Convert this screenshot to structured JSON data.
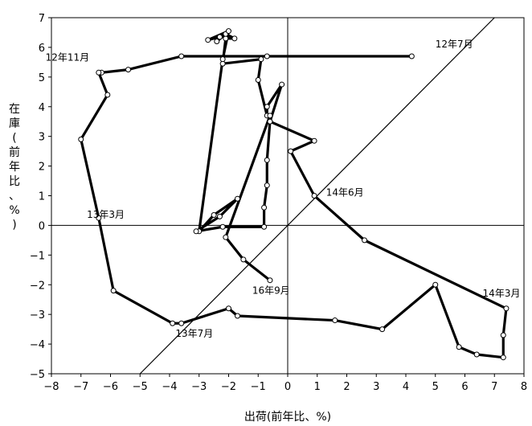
{
  "chart_data": {
    "type": "line",
    "xlabel": "出荷(前年比、%)",
    "ylabel": "在庫(前年比、%)",
    "xlim": [
      -8,
      8
    ],
    "ylim": [
      -5,
      7
    ],
    "xticks": [
      "−8",
      "−7",
      "−6",
      "−5",
      "−4",
      "−3",
      "−2",
      "−1",
      "0",
      "1",
      "2",
      "3",
      "4",
      "5",
      "6",
      "7",
      "8"
    ],
    "yticks": [
      "−5",
      "−4",
      "−3",
      "−2",
      "−1",
      "0",
      "1",
      "2",
      "3",
      "4",
      "5",
      "6",
      "7"
    ],
    "reference_line": "y = x",
    "grid": false,
    "series": [
      {
        "x": [
          4.2,
          -0.7,
          -3.6,
          -5.4,
          -6.3,
          -6.4,
          -6.1,
          -7.0,
          -6.4,
          -5.9,
          -3.9,
          -3.6,
          -2.0,
          -1.7,
          1.6,
          3.2,
          5.0,
          5.8,
          6.4,
          7.3,
          7.3,
          7.4,
          2.6,
          0.9,
          0.1,
          0.9,
          -0.6,
          -0.2,
          -0.7,
          -0.7,
          -1.0,
          -0.9,
          -2.2,
          -2.1,
          -1.8,
          -2.1,
          -2.4,
          -2.3,
          -2.7,
          -2.0,
          -2.2,
          -3.0,
          -2.5,
          -1.7,
          -2.3,
          -3.1,
          -2.2,
          -0.8,
          -0.8,
          -0.7,
          -0.7,
          -0.6,
          -0.6,
          -2.1,
          -1.5,
          -0.6
        ],
        "y": [
          5.7,
          5.7,
          5.7,
          5.25,
          5.15,
          5.15,
          4.4,
          2.9,
          0.25,
          -2.2,
          -3.3,
          -3.3,
          -2.8,
          -3.05,
          -3.2,
          -3.5,
          -2.0,
          -4.1,
          -4.35,
          -4.45,
          -3.7,
          -2.8,
          -0.5,
          1.0,
          2.5,
          2.85,
          3.5,
          4.75,
          4.0,
          3.7,
          4.9,
          5.6,
          5.45,
          6.3,
          6.3,
          6.45,
          6.2,
          6.35,
          6.25,
          6.55,
          5.6,
          -0.2,
          0.35,
          0.9,
          0.3,
          -0.2,
          -0.05,
          -0.05,
          0.6,
          1.35,
          2.2,
          3.5,
          3.7,
          -0.4,
          -1.15,
          -1.85
        ]
      }
    ],
    "annotations": [
      {
        "text": "12年7月",
        "x": 5.0,
        "y": 6.0
      },
      {
        "text": "12年11月",
        "x": -8.2,
        "y": 5.55
      },
      {
        "text": "13年3月",
        "x": -6.8,
        "y": 0.25
      },
      {
        "text": "13年7月",
        "x": -3.8,
        "y": -3.75
      },
      {
        "text": "14年3月",
        "x": 6.6,
        "y": -2.4
      },
      {
        "text": "14年6月",
        "x": 1.3,
        "y": 1.0
      },
      {
        "text": "16年9月",
        "x": -1.2,
        "y": -2.3
      }
    ]
  }
}
